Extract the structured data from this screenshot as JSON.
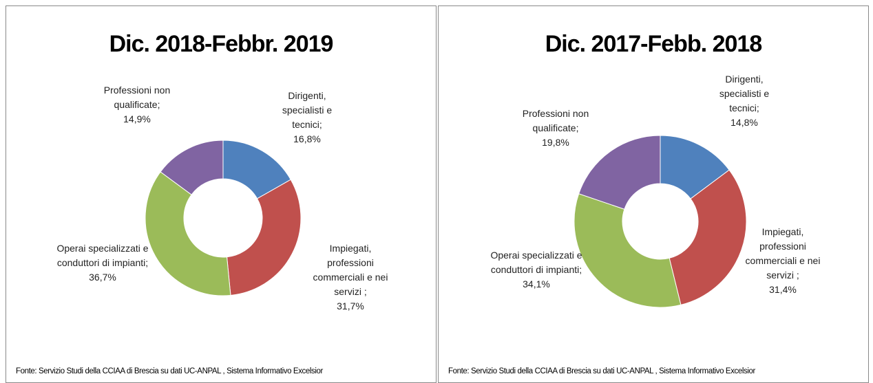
{
  "chart_data": [
    {
      "type": "donut",
      "title": "Dic. 2018-Febbr. 2019",
      "categories": [
        "Dirigenti, specialisti e tecnici;",
        "Impiegati, professioni commerciali e nei servizi ;",
        "Operai specializzati e conduttori di impianti;",
        "Professioni non qualificate;"
      ],
      "values": [
        16.8,
        31.7,
        36.7,
        14.9
      ],
      "value_labels": [
        "16,8%",
        "31,7%",
        "36,7%",
        "14,9%"
      ],
      "colors": [
        "#4f81bd",
        "#c0504d",
        "#9bbb59",
        "#8064a2"
      ],
      "source": "Fonte: Servizio Studi della CCIAA di Brescia su dati UC-ANPAL , Sistema Informativo Excelsior"
    },
    {
      "type": "donut",
      "title": "Dic. 2017-Febb. 2018",
      "categories": [
        "Dirigenti, specialisti e tecnici;",
        "Impiegati, professioni commerciali e nei servizi ;",
        "Operai specializzati e conduttori di impianti;",
        "Professioni non qualificate;"
      ],
      "values": [
        14.8,
        31.4,
        34.1,
        19.8
      ],
      "value_labels": [
        "14,8%",
        "31,4%",
        "34,1%",
        "19,8%"
      ],
      "colors": [
        "#4f81bd",
        "#c0504d",
        "#9bbb59",
        "#8064a2"
      ],
      "source": "Fonte: Servizio Studi della CCIAA di Brescia su dati UC-ANPAL , Sistema Informativo Excelsior"
    }
  ]
}
